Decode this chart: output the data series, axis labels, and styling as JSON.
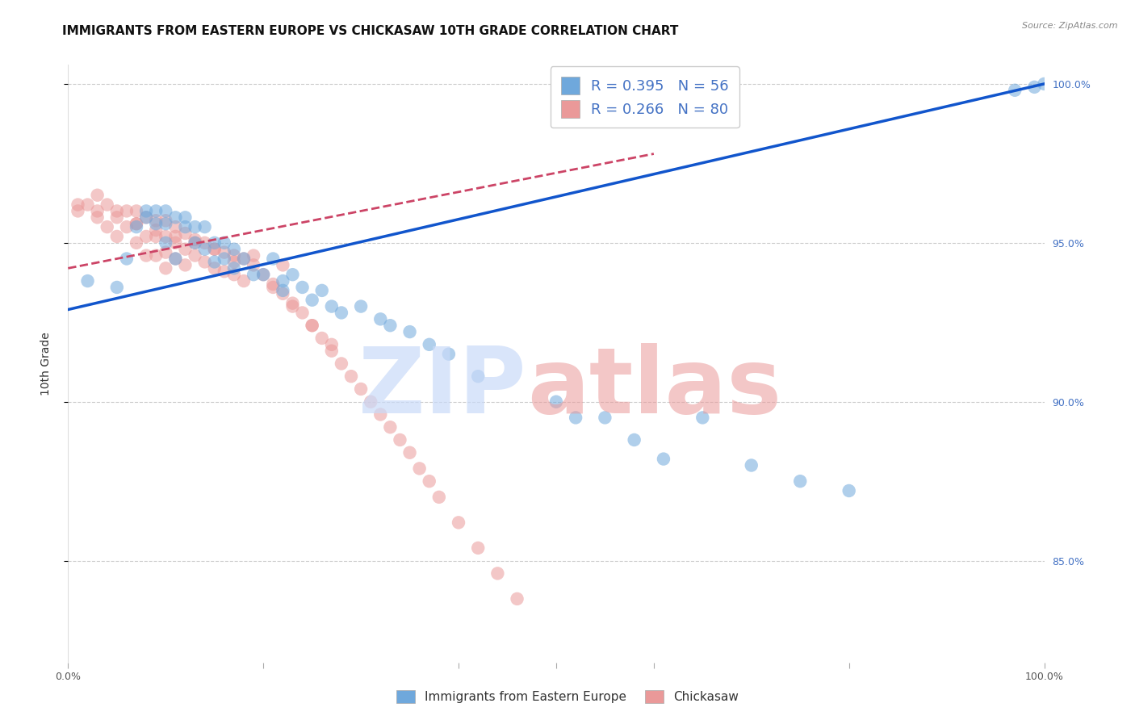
{
  "title": "IMMIGRANTS FROM EASTERN EUROPE VS CHICKASAW 10TH GRADE CORRELATION CHART",
  "source": "Source: ZipAtlas.com",
  "ylabel_left": "10th Grade",
  "legend_blue_label": "R = 0.395   N = 56",
  "legend_pink_label": "R = 0.266   N = 80",
  "blue_color": "#6fa8dc",
  "pink_color": "#ea9999",
  "trend_blue_color": "#1155cc",
  "trend_pink_color": "#cc4466",
  "xlim": [
    0.0,
    1.0
  ],
  "ylim": [
    0.818,
    1.006
  ],
  "right_yticks": [
    0.85,
    0.9,
    0.95,
    1.0
  ],
  "right_yticklabels": [
    "85.0%",
    "90.0%",
    "95.0%",
    "100.0%"
  ],
  "blue_trend_x0": 0.0,
  "blue_trend_y0": 0.929,
  "blue_trend_x1": 1.0,
  "blue_trend_y1": 1.0,
  "pink_trend_x0": 0.0,
  "pink_trend_y0": 0.942,
  "pink_trend_x1": 0.6,
  "pink_trend_y1": 0.978,
  "blue_scatter_x": [
    0.02,
    0.05,
    0.06,
    0.07,
    0.08,
    0.08,
    0.09,
    0.09,
    0.1,
    0.1,
    0.1,
    0.11,
    0.11,
    0.12,
    0.12,
    0.13,
    0.13,
    0.14,
    0.14,
    0.15,
    0.15,
    0.16,
    0.16,
    0.17,
    0.17,
    0.18,
    0.19,
    0.2,
    0.21,
    0.22,
    0.22,
    0.23,
    0.24,
    0.25,
    0.26,
    0.27,
    0.28,
    0.3,
    0.32,
    0.33,
    0.35,
    0.37,
    0.39,
    0.42,
    0.5,
    0.52,
    0.55,
    0.58,
    0.61,
    0.65,
    0.7,
    0.75,
    0.8,
    0.97,
    0.99,
    1.0
  ],
  "blue_scatter_y": [
    0.938,
    0.936,
    0.945,
    0.955,
    0.96,
    0.958,
    0.96,
    0.956,
    0.96,
    0.956,
    0.95,
    0.958,
    0.945,
    0.958,
    0.955,
    0.955,
    0.95,
    0.955,
    0.948,
    0.95,
    0.944,
    0.95,
    0.945,
    0.948,
    0.942,
    0.945,
    0.94,
    0.94,
    0.945,
    0.938,
    0.935,
    0.94,
    0.936,
    0.932,
    0.935,
    0.93,
    0.928,
    0.93,
    0.926,
    0.924,
    0.922,
    0.918,
    0.915,
    0.908,
    0.9,
    0.895,
    0.895,
    0.888,
    0.882,
    0.895,
    0.88,
    0.875,
    0.872,
    0.998,
    0.999,
    1.0
  ],
  "pink_scatter_x": [
    0.01,
    0.02,
    0.03,
    0.03,
    0.04,
    0.04,
    0.05,
    0.05,
    0.06,
    0.06,
    0.07,
    0.07,
    0.07,
    0.08,
    0.08,
    0.08,
    0.09,
    0.09,
    0.09,
    0.1,
    0.1,
    0.1,
    0.1,
    0.11,
    0.11,
    0.11,
    0.12,
    0.12,
    0.12,
    0.13,
    0.13,
    0.14,
    0.14,
    0.15,
    0.15,
    0.16,
    0.16,
    0.17,
    0.17,
    0.18,
    0.18,
    0.19,
    0.2,
    0.21,
    0.22,
    0.23,
    0.24,
    0.25,
    0.26,
    0.27,
    0.28,
    0.29,
    0.3,
    0.31,
    0.32,
    0.33,
    0.34,
    0.35,
    0.36,
    0.37,
    0.38,
    0.4,
    0.42,
    0.44,
    0.46,
    0.21,
    0.23,
    0.25,
    0.27,
    0.22,
    0.19,
    0.17,
    0.15,
    0.13,
    0.11,
    0.09,
    0.07,
    0.05,
    0.03,
    0.01
  ],
  "pink_scatter_y": [
    0.96,
    0.962,
    0.965,
    0.958,
    0.962,
    0.955,
    0.96,
    0.952,
    0.96,
    0.955,
    0.96,
    0.956,
    0.95,
    0.958,
    0.952,
    0.946,
    0.957,
    0.952,
    0.946,
    0.957,
    0.952,
    0.947,
    0.942,
    0.955,
    0.95,
    0.945,
    0.953,
    0.948,
    0.943,
    0.951,
    0.946,
    0.95,
    0.944,
    0.948,
    0.942,
    0.947,
    0.941,
    0.946,
    0.94,
    0.945,
    0.938,
    0.943,
    0.94,
    0.937,
    0.934,
    0.931,
    0.928,
    0.924,
    0.92,
    0.916,
    0.912,
    0.908,
    0.904,
    0.9,
    0.896,
    0.892,
    0.888,
    0.884,
    0.879,
    0.875,
    0.87,
    0.862,
    0.854,
    0.846,
    0.838,
    0.936,
    0.93,
    0.924,
    0.918,
    0.943,
    0.946,
    0.944,
    0.948,
    0.95,
    0.952,
    0.954,
    0.956,
    0.958,
    0.96,
    0.962
  ],
  "grid_color": "#cccccc",
  "background_color": "#ffffff",
  "title_fontsize": 11,
  "axis_label_fontsize": 10,
  "tick_fontsize": 9
}
